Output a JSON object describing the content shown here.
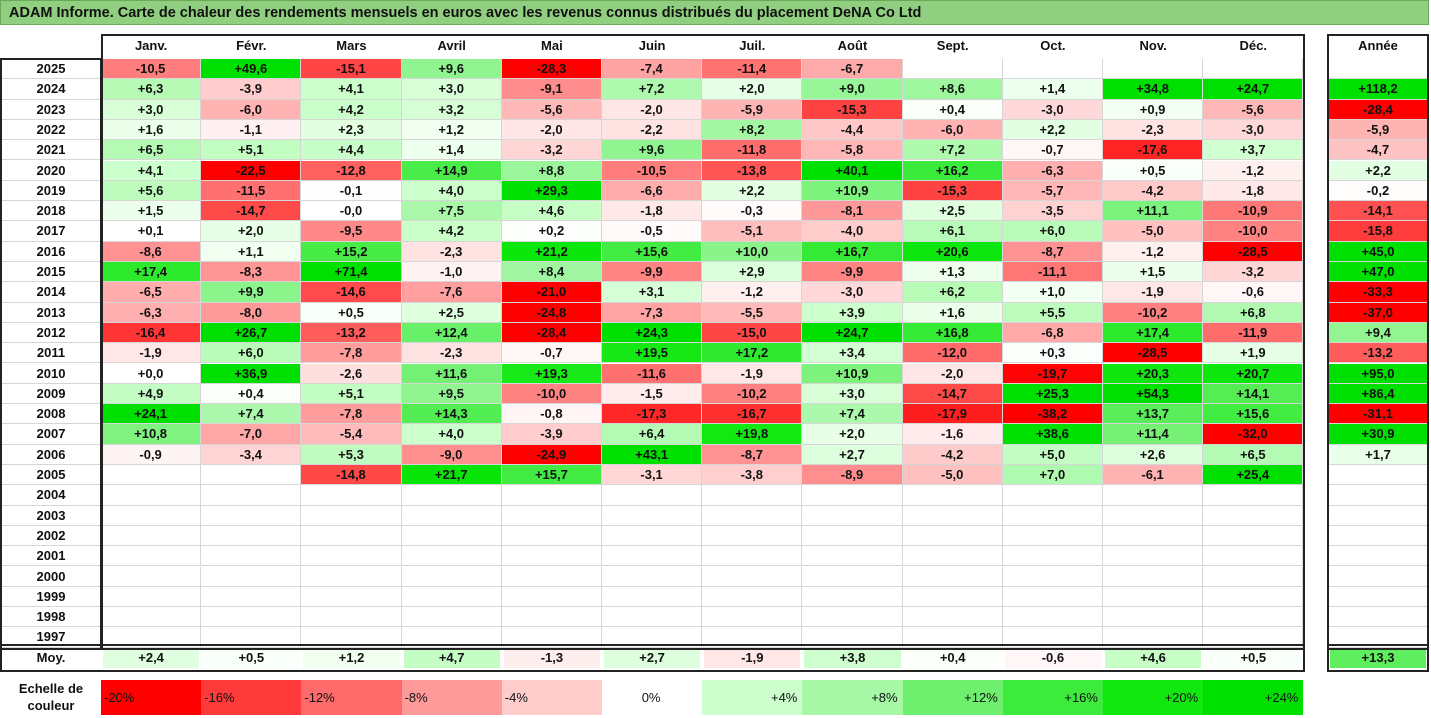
{
  "title": "ADAM Informe. Carte de chaleur des rendements mensuels en euros avec les revenus connus distribués du placement DeNA Co Ltd",
  "chart_data": {
    "type": "heatmap",
    "title": "ADAM Informe. Carte de chaleur des rendements mensuels en euros avec les revenus connus distribués du placement DeNA Co Ltd",
    "columns": [
      "Janv.",
      "Févr.",
      "Mars",
      "Avril",
      "Mai",
      "Juin",
      "Juil.",
      "Août",
      "Sept.",
      "Oct.",
      "Nov.",
      "Déc."
    ],
    "year_column_label": "Année",
    "years": [
      "2025",
      "2024",
      "2023",
      "2022",
      "2021",
      "2020",
      "2019",
      "2018",
      "2017",
      "2016",
      "2015",
      "2014",
      "2013",
      "2012",
      "2011",
      "2010",
      "2009",
      "2008",
      "2007",
      "2006",
      "2005",
      "2004",
      "2003",
      "2002",
      "2001",
      "2000",
      "1999",
      "1998",
      "1997"
    ],
    "values": [
      [
        "-10,5",
        "+49,6",
        "-15,1",
        "+9,6",
        "-28,3",
        "-7,4",
        "-11,4",
        "-6,7",
        "",
        "",
        "",
        ""
      ],
      [
        "+6,3",
        "-3,9",
        "+4,1",
        "+3,0",
        "-9,1",
        "+7,2",
        "+2,0",
        "+9,0",
        "+8,6",
        "+1,4",
        "+34,8",
        "+24,7"
      ],
      [
        "+3,0",
        "-6,0",
        "+4,2",
        "+3,2",
        "-5,6",
        "-2,0",
        "-5,9",
        "-15,3",
        "+0,4",
        "-3,0",
        "+0,9",
        "-5,6"
      ],
      [
        "+1,6",
        "-1,1",
        "+2,3",
        "+1,2",
        "-2,0",
        "-2,2",
        "+8,2",
        "-4,4",
        "-6,0",
        "+2,2",
        "-2,3",
        "-3,0"
      ],
      [
        "+6,5",
        "+5,1",
        "+4,4",
        "+1,4",
        "-3,2",
        "+9,6",
        "-11,8",
        "-5,8",
        "+7,2",
        "-0,7",
        "-17,6",
        "+3,7"
      ],
      [
        "+4,1",
        "-22,5",
        "-12,8",
        "+14,9",
        "+8,8",
        "-10,5",
        "-13,8",
        "+40,1",
        "+16,2",
        "-6,3",
        "+0,5",
        "-1,2"
      ],
      [
        "+5,6",
        "-11,5",
        "-0,1",
        "+4,0",
        "+29,3",
        "-6,6",
        "+2,2",
        "+10,9",
        "-15,3",
        "-5,7",
        "-4,2",
        "-1,8"
      ],
      [
        "+1,5",
        "-14,7",
        "-0,0",
        "+7,5",
        "+4,6",
        "-1,8",
        "-0,3",
        "-8,1",
        "+2,5",
        "-3,5",
        "+11,1",
        "-10,9"
      ],
      [
        "+0,1",
        "+2,0",
        "-9,5",
        "+4,2",
        "+0,2",
        "-0,5",
        "-5,1",
        "-4,0",
        "+6,1",
        "+6,0",
        "-5,0",
        "-10,0"
      ],
      [
        "-8,6",
        "+1,1",
        "+15,2",
        "-2,3",
        "+21,2",
        "+15,6",
        "+10,0",
        "+16,7",
        "+20,6",
        "-8,7",
        "-1,2",
        "-28,5"
      ],
      [
        "+17,4",
        "-8,3",
        "+71,4",
        "-1,0",
        "+8,4",
        "-9,9",
        "+2,9",
        "-9,9",
        "+1,3",
        "-11,1",
        "+1,5",
        "-3,2"
      ],
      [
        "-6,5",
        "+9,9",
        "-14,6",
        "-7,6",
        "-21,0",
        "+3,1",
        "-1,2",
        "-3,0",
        "+6,2",
        "+1,0",
        "-1,9",
        "-0,6"
      ],
      [
        "-6,3",
        "-8,0",
        "+0,5",
        "+2,5",
        "-24,8",
        "-7,3",
        "-5,5",
        "+3,9",
        "+1,6",
        "+5,5",
        "-10,2",
        "+6,8"
      ],
      [
        "-16,4",
        "+26,7",
        "-13,2",
        "+12,4",
        "-28,4",
        "+24,3",
        "-15,0",
        "+24,7",
        "+16,8",
        "-6,8",
        "+17,4",
        "-11,9"
      ],
      [
        "-1,9",
        "+6,0",
        "-7,8",
        "-2,3",
        "-0,7",
        "+19,5",
        "+17,2",
        "+3,4",
        "-12,0",
        "+0,3",
        "-28,5",
        "+1,9"
      ],
      [
        "+0,0",
        "+36,9",
        "-2,6",
        "+11,6",
        "+19,3",
        "-11,6",
        "-1,9",
        "+10,9",
        "-2,0",
        "-19,7",
        "+20,3",
        "+20,7"
      ],
      [
        "+4,9",
        "+0,4",
        "+5,1",
        "+9,5",
        "-10,0",
        "-1,5",
        "-10,2",
        "+3,0",
        "-14,7",
        "+25,3",
        "+54,3",
        "+14,1"
      ],
      [
        "+24,1",
        "+7,4",
        "-7,8",
        "+14,3",
        "-0,8",
        "-17,3",
        "-16,7",
        "+7,4",
        "-17,9",
        "-38,2",
        "+13,7",
        "+15,6"
      ],
      [
        "+10,8",
        "-7,0",
        "-5,4",
        "+4,0",
        "-3,9",
        "+6,4",
        "+19,8",
        "+2,0",
        "-1,6",
        "+38,6",
        "+11,4",
        "-32,0"
      ],
      [
        "-0,9",
        "-3,4",
        "+5,3",
        "-9,0",
        "-24,9",
        "+43,1",
        "-8,7",
        "+2,7",
        "-4,2",
        "+5,0",
        "+2,6",
        "+6,5"
      ],
      [
        "",
        "",
        "-14,8",
        "+21,7",
        "+15,7",
        "-3,1",
        "-3,8",
        "-8,9",
        "-5,0",
        "+7,0",
        "-6,1",
        "+25,4"
      ],
      [
        "",
        "",
        "",
        "",
        "",
        "",
        "",
        "",
        "",
        "",
        "",
        ""
      ],
      [
        "",
        "",
        "",
        "",
        "",
        "",
        "",
        "",
        "",
        "",
        "",
        ""
      ],
      [
        "",
        "",
        "",
        "",
        "",
        "",
        "",
        "",
        "",
        "",
        "",
        ""
      ],
      [
        "",
        "",
        "",
        "",
        "",
        "",
        "",
        "",
        "",
        "",
        "",
        ""
      ],
      [
        "",
        "",
        "",
        "",
        "",
        "",
        "",
        "",
        "",
        "",
        "",
        ""
      ],
      [
        "",
        "",
        "",
        "",
        "",
        "",
        "",
        "",
        "",
        "",
        "",
        ""
      ],
      [
        "",
        "",
        "",
        "",
        "",
        "",
        "",
        "",
        "",
        "",
        "",
        ""
      ],
      [
        "",
        "",
        "",
        "",
        "",
        "",
        "",
        "",
        "",
        "",
        "",
        ""
      ]
    ],
    "year_totals": [
      "",
      "+118,2",
      "-28,4",
      "-5,9",
      "-4,7",
      "+2,2",
      "-0,2",
      "-14,1",
      "-15,8",
      "+45,0",
      "+47,0",
      "-33,3",
      "-37,0",
      "+9,4",
      "-13,2",
      "+95,0",
      "+86,4",
      "-31,1",
      "+30,9",
      "+1,7",
      "",
      "",
      "",
      "",
      "",
      "",
      "",
      "",
      ""
    ],
    "average_label": "Moy.",
    "averages": [
      "+2,4",
      "+0,5",
      "+1,2",
      "+4,7",
      "-1,3",
      "+2,7",
      "-1,9",
      "+3,8",
      "+0,4",
      "-0,6",
      "+4,6",
      "+0,5"
    ],
    "average_total": "+13,3",
    "color_scale": {
      "label": "Echelle de couleur",
      "stops": [
        {
          "label": "-20%",
          "color": "#ff0000"
        },
        {
          "label": "-16%",
          "color": "#ff3a3a"
        },
        {
          "label": "-12%",
          "color": "#ff6b6b"
        },
        {
          "label": "-8%",
          "color": "#ff9a9a"
        },
        {
          "label": "-4%",
          "color": "#ffcccc"
        },
        {
          "label": "0%",
          "color": "#ffffff"
        },
        {
          "label": "+4%",
          "color": "#ccffcc"
        },
        {
          "label": "+8%",
          "color": "#a6f7a6"
        },
        {
          "label": "+12%",
          "color": "#6ef06e"
        },
        {
          "label": "+16%",
          "color": "#3deb3d"
        },
        {
          "label": "+20%",
          "color": "#10e810"
        },
        {
          "label": "+24%",
          "color": "#00e000"
        }
      ]
    }
  }
}
